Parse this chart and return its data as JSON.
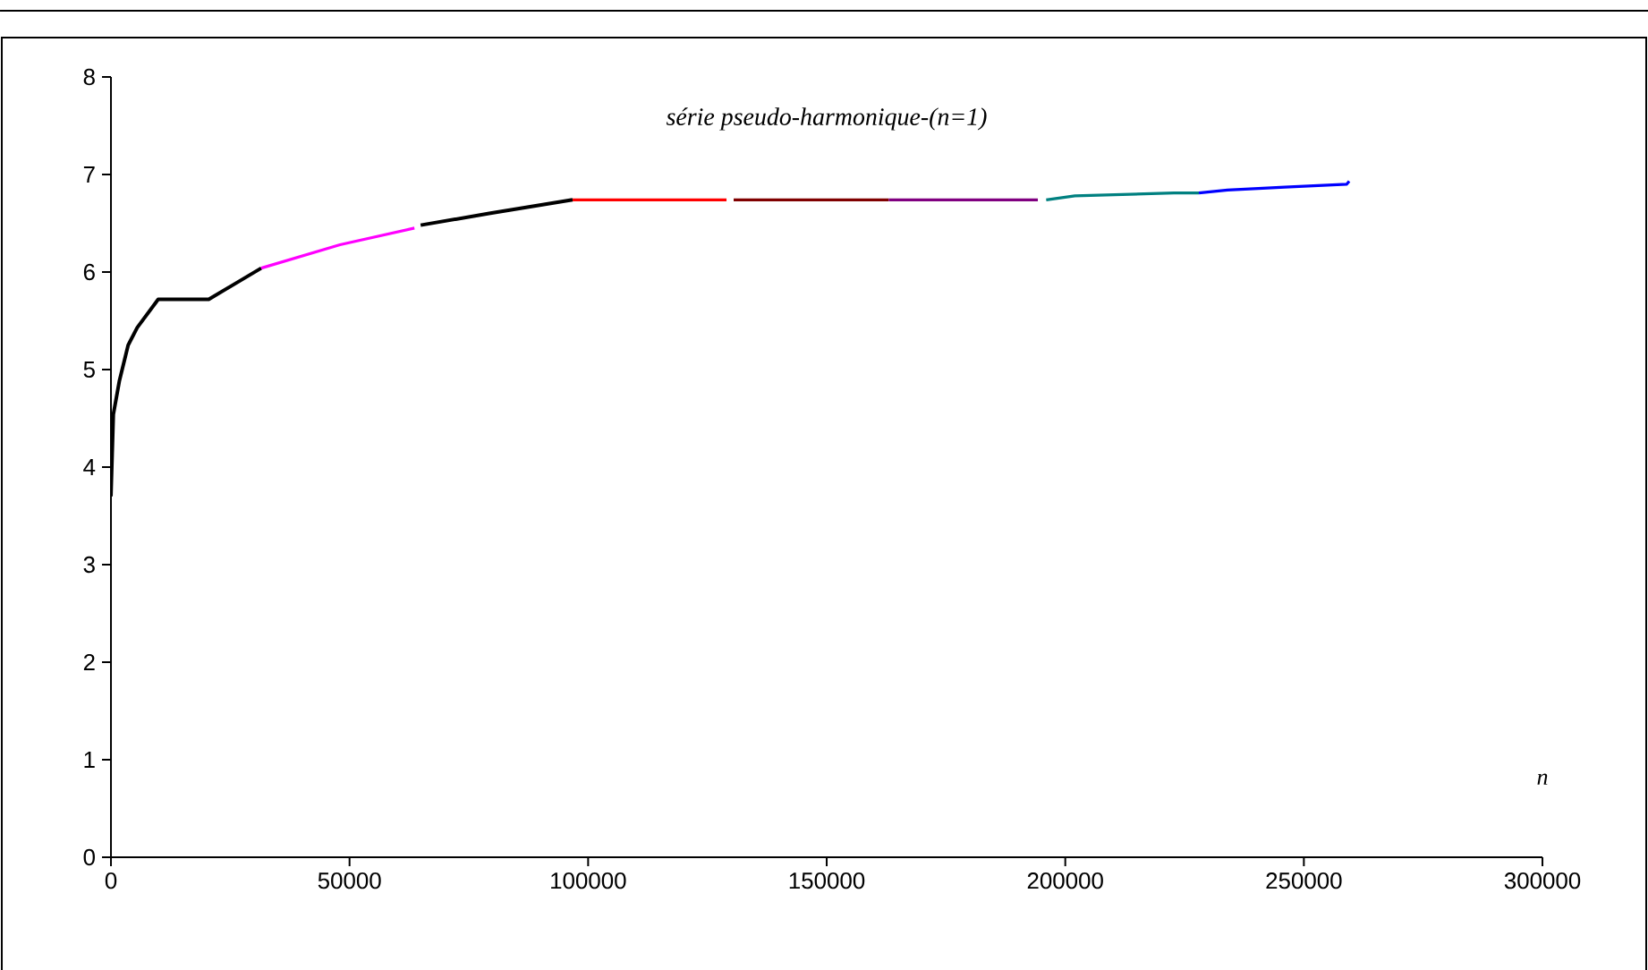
{
  "chart_data": {
    "type": "line",
    "title": "série pseudo-harmonique-(n=1)",
    "xlabel": "n",
    "xlim": [
      0,
      300000
    ],
    "ylim": [
      0,
      8
    ],
    "xticks": [
      0,
      50000,
      100000,
      150000,
      200000,
      250000,
      300000
    ],
    "yticks": [
      0,
      1,
      2,
      3,
      4,
      5,
      6,
      7,
      8
    ],
    "grid": false,
    "marker": "none",
    "line_style": "solid",
    "series": [
      {
        "color": "#000000",
        "x": [
          0,
          500,
          1750,
          3600,
          5500,
          9900,
          20500,
          31500
        ],
        "values": [
          3.7,
          4.54,
          4.88,
          5.25,
          5.43,
          5.72,
          5.72,
          6.04
        ]
      },
      {
        "color": "#ff00ff",
        "x": [
          31500,
          48000,
          63600
        ],
        "values": [
          6.04,
          6.28,
          6.45
        ]
      },
      {
        "color": "#000000",
        "x": [
          64900,
          79250,
          96750
        ],
        "values": [
          6.48,
          6.6,
          6.74
        ]
      },
      {
        "color": "#ff0000",
        "x": [
          96750,
          129000
        ],
        "values": [
          6.74,
          6.74
        ]
      },
      {
        "color": "#800000",
        "x": [
          130500,
          163000
        ],
        "values": [
          6.74,
          6.74
        ]
      },
      {
        "color": "#800080",
        "x": [
          163000,
          194250
        ],
        "values": [
          6.74,
          6.74
        ]
      },
      {
        "color": "#008080",
        "x": [
          196000,
          202000,
          222750,
          228000
        ],
        "values": [
          6.74,
          6.78,
          6.81,
          6.81
        ]
      },
      {
        "color": "#0000ff",
        "x": [
          228000,
          234000,
          246000,
          259000,
          259500
        ],
        "values": [
          6.81,
          6.84,
          6.87,
          6.9,
          6.93
        ]
      }
    ]
  }
}
